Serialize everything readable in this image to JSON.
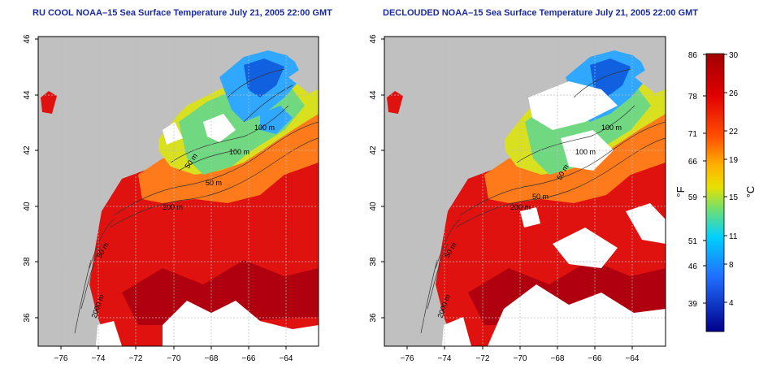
{
  "panels": [
    {
      "title": "RU COOL NOAA–15 Sea Surface Temperature July 21, 2005 22:00 GMT",
      "x_ticks": [
        "−76",
        "−74",
        "−72",
        "−70",
        "−68",
        "−66",
        "−64"
      ],
      "y_ticks": [
        "36",
        "38",
        "40",
        "42",
        "44",
        "46"
      ],
      "contour_labels": [
        "100 m",
        "100 m",
        "50 m",
        "50 m",
        "200 m",
        "50 m",
        "2000 m"
      ]
    },
    {
      "title": "DECLOUDED NOAA–15 Sea Surface Temperature July 21, 2005 22:00 GMT",
      "x_ticks": [
        "−76",
        "−74",
        "−72",
        "−70",
        "−68",
        "−66",
        "−64"
      ],
      "y_ticks": [
        "36",
        "38",
        "40",
        "42",
        "44",
        "46"
      ],
      "contour_labels": [
        "100 m",
        "100 m",
        "50 m",
        "200 m",
        "50 m",
        "50 m",
        "2000 m"
      ]
    }
  ],
  "colorbar": {
    "fahrenheit_ticks": [
      "86",
      "78",
      "71",
      "66",
      "59",
      "51",
      "46",
      "39"
    ],
    "celsius_ticks": [
      "30",
      "26",
      "22",
      "19",
      "15",
      "11",
      "8",
      "4"
    ],
    "fahrenheit_unit": "°F",
    "celsius_unit": "°C",
    "colors": [
      "#f4004a",
      "#dd0000",
      "#ff3000",
      "#ff8000",
      "#ffd000",
      "#c8e600",
      "#40d8a0",
      "#00c8ff",
      "#2060ff",
      "#0000aa"
    ]
  },
  "map_colors": {
    "land": "#c0c0c0",
    "cloud": "#ffffff",
    "warm": "#e01010",
    "mid": "#ff7a1a",
    "cool": "#30a8ff"
  }
}
